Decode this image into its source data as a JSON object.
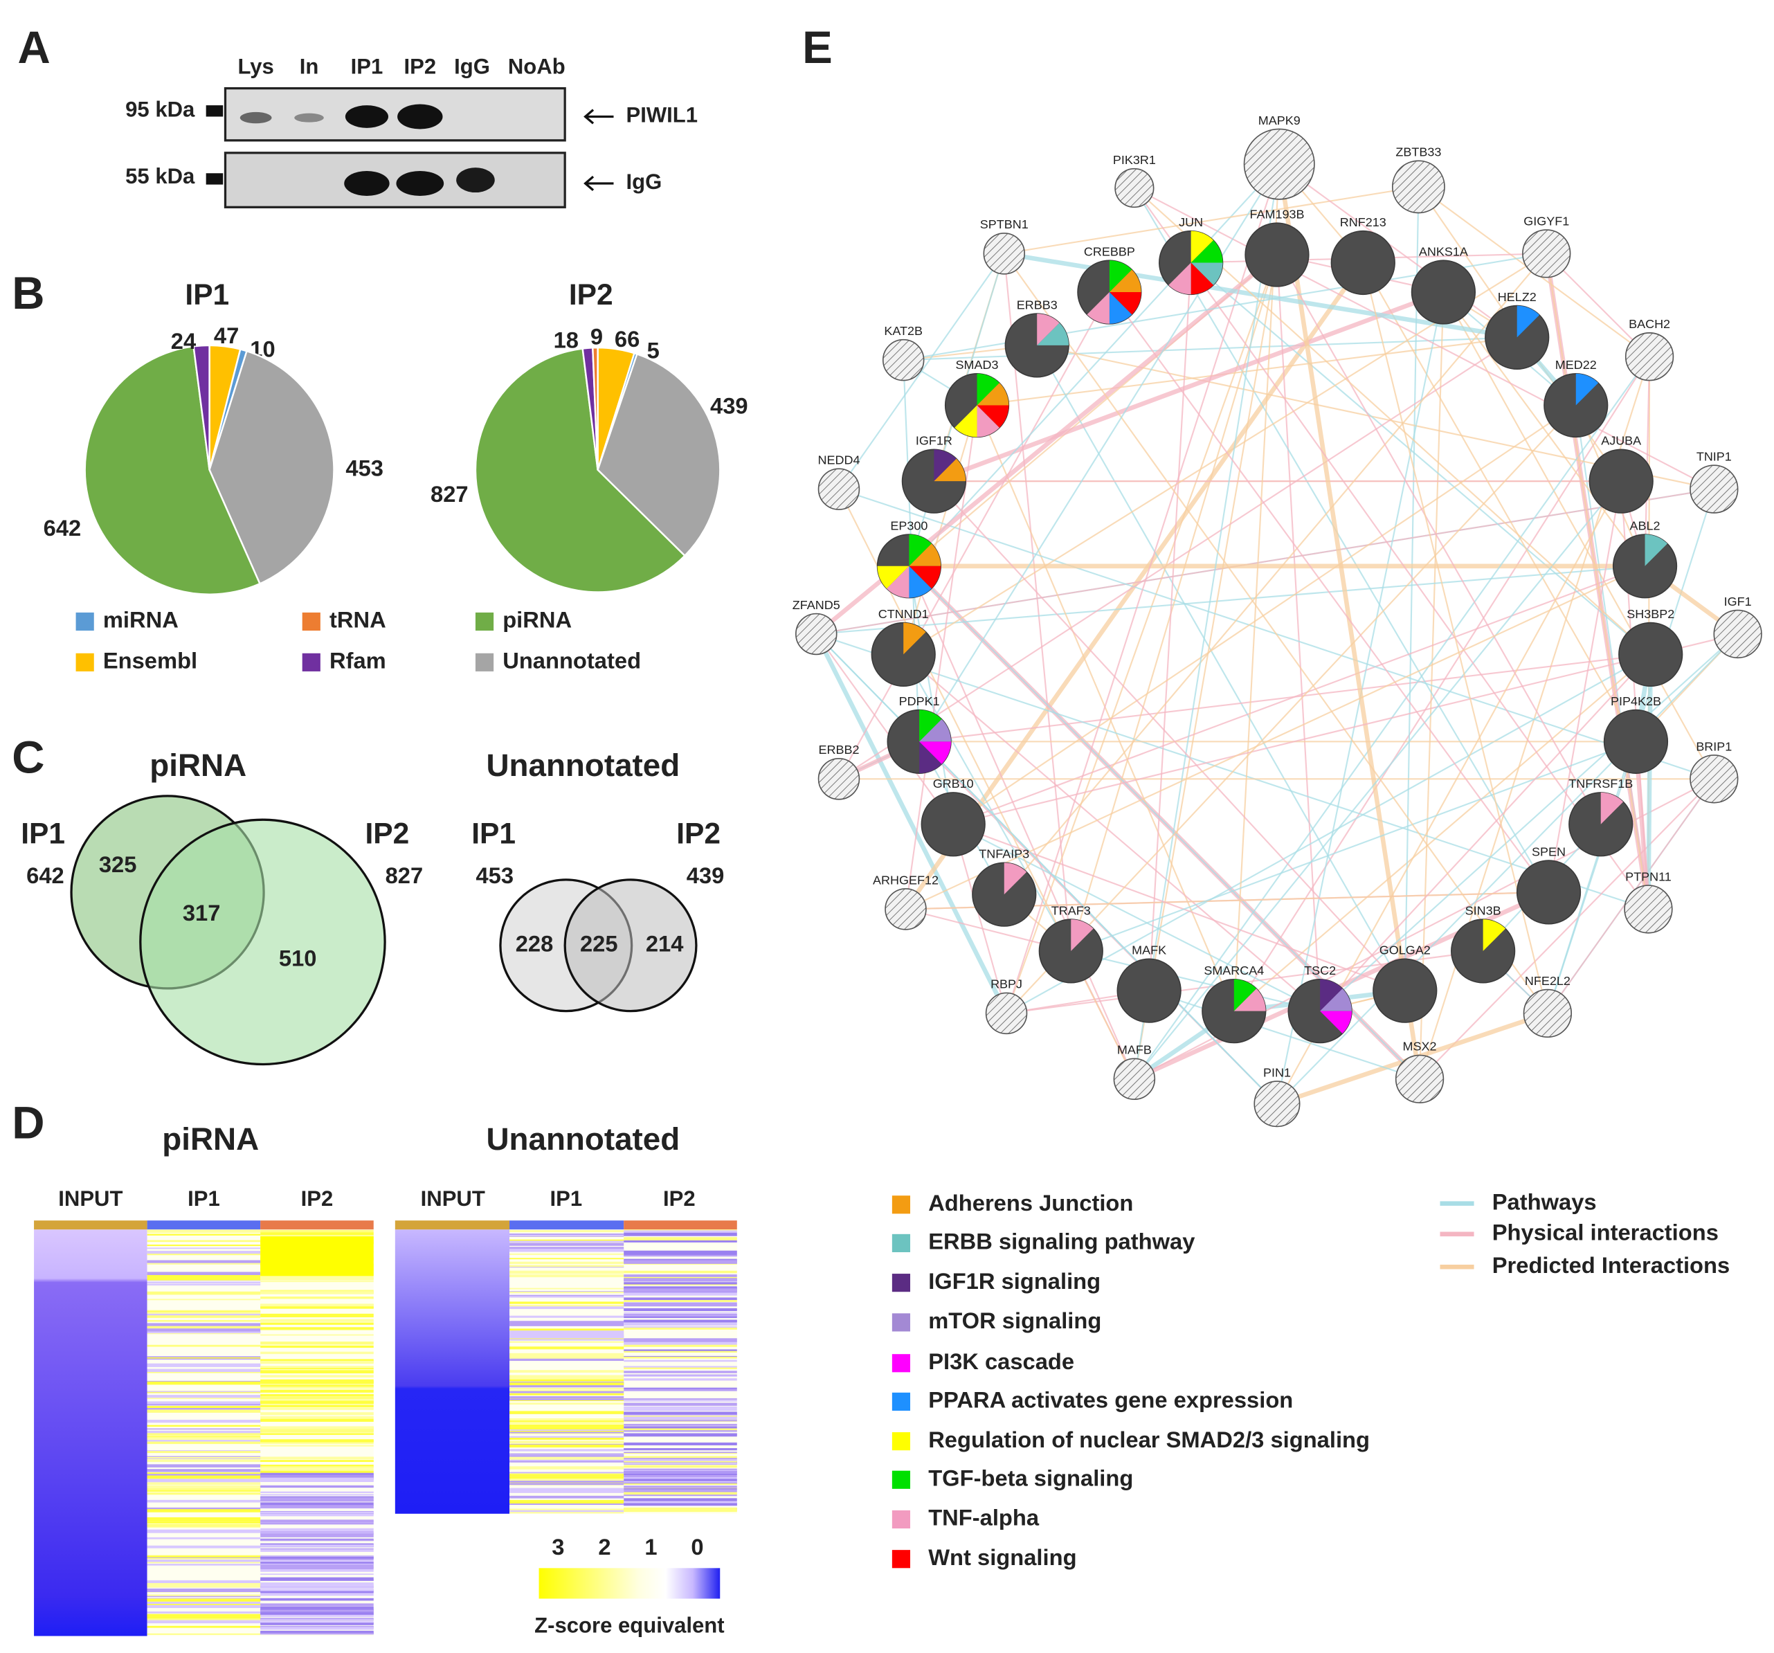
{
  "panel_labels": [
    "A",
    "B",
    "C",
    "D",
    "E"
  ],
  "blot": {
    "lanes": [
      "Lys",
      "In",
      "IP1",
      "IP2",
      "IgG",
      "NoAb"
    ],
    "markers": [
      "95 kDa",
      "55 kDa"
    ],
    "bands": [
      "PIWIL1",
      "IgG"
    ]
  },
  "pie_legend": [
    {
      "name": "miRNA",
      "color": "#5b9bd5"
    },
    {
      "name": "tRNA",
      "color": "#ed7d31"
    },
    {
      "name": "piRNA",
      "color": "#70ad47"
    },
    {
      "name": "Ensembl",
      "color": "#ffc000"
    },
    {
      "name": "Rfam",
      "color": "#7030a0"
    },
    {
      "name": "Unannotated",
      "color": "#a5a5a5"
    }
  ],
  "chart_data": [
    {
      "type": "pie",
      "title": "IP1",
      "categories": [
        "Ensembl",
        "miRNA",
        "Unannotated",
        "piRNA",
        "Rfam"
      ],
      "values": [
        47,
        10,
        453,
        642,
        24
      ]
    },
    {
      "type": "pie",
      "title": "IP2",
      "categories": [
        "Ensembl",
        "miRNA",
        "Unannotated",
        "piRNA",
        "Rfam",
        "tRNA"
      ],
      "values": [
        66,
        5,
        439,
        827,
        18,
        9
      ]
    }
  ],
  "venn": [
    {
      "title": "piRNA",
      "sets": [
        "IP1",
        "IP2"
      ],
      "totals": [
        642,
        827
      ],
      "regions": [
        325,
        317,
        510
      ]
    },
    {
      "title": "Unannotated",
      "sets": [
        "IP1",
        "IP2"
      ],
      "totals": [
        453,
        439
      ],
      "regions": [
        228,
        225,
        214
      ]
    }
  ],
  "heatmap": [
    {
      "title": "piRNA",
      "columns": [
        "INPUT",
        "IP1",
        "IP2"
      ]
    },
    {
      "title": "Unannotated",
      "columns": [
        "INPUT",
        "IP1",
        "IP2"
      ]
    }
  ],
  "colorbar": {
    "ticks": [
      3,
      2,
      1,
      0
    ],
    "label": "Z-score equivalent"
  },
  "network": {
    "nodes": [
      {
        "label": "JUN",
        "annotations": [
          "Regulation of nuclear SMAD2/3 signaling",
          "TGF-beta signaling",
          "ERBB signaling pathway",
          "Wnt signaling",
          "TNF-alpha"
        ]
      },
      {
        "label": "FAM193B",
        "annotations": []
      },
      {
        "label": "RNF213",
        "annotations": []
      },
      {
        "label": "ANKS1A",
        "annotations": []
      },
      {
        "label": "HELZ2",
        "annotations": [
          "PPARA activates gene expression"
        ]
      },
      {
        "label": "MED22",
        "annotations": [
          "PPARA activates gene expression"
        ]
      },
      {
        "label": "AJUBA",
        "annotations": []
      },
      {
        "label": "ABL2",
        "annotations": [
          "ERBB signaling pathway"
        ]
      },
      {
        "label": "SH3BP2",
        "annotations": []
      },
      {
        "label": "PIP4K2B",
        "annotations": []
      },
      {
        "label": "TNFRSF1B",
        "annotations": [
          "TNF-alpha"
        ]
      },
      {
        "label": "SPEN",
        "annotations": []
      },
      {
        "label": "SIN3B",
        "annotations": [
          "Regulation of nuclear SMAD2/3 signaling"
        ]
      },
      {
        "label": "GOLGA2",
        "annotations": []
      },
      {
        "label": "TSC2",
        "annotations": [
          "IGF1R signaling",
          "mTOR signaling",
          "PI3K cascade"
        ]
      },
      {
        "label": "SMARCA4",
        "annotations": [
          "TGF-beta signaling",
          "TNF-alpha"
        ]
      },
      {
        "label": "MAFK",
        "annotations": []
      },
      {
        "label": "TRAF3",
        "annotations": [
          "TNF-alpha"
        ]
      },
      {
        "label": "TNFAIP3",
        "annotations": [
          "TNF-alpha"
        ]
      },
      {
        "label": "GRB10",
        "annotations": []
      },
      {
        "label": "PDPK1",
        "annotations": [
          "TGF-beta signaling",
          "mTOR signaling",
          "PI3K cascade",
          "IGF1R signaling"
        ]
      },
      {
        "label": "CTNND1",
        "annotations": [
          "Adherens Junction"
        ]
      },
      {
        "label": "EP300",
        "annotations": [
          "TGF-beta signaling",
          "Adherens Junction",
          "Wnt signaling",
          "PPARA activates gene expression",
          "TNF-alpha",
          "Regulation of nuclear SMAD2/3 signaling"
        ]
      },
      {
        "label": "IGF1R",
        "annotations": [
          "IGF1R signaling",
          "Adherens Junction"
        ]
      },
      {
        "label": "SMAD3",
        "annotations": [
          "TGF-beta signaling",
          "Adherens Junction",
          "Wnt signaling",
          "TNF-alpha",
          "Regulation of nuclear SMAD2/3 signaling"
        ]
      },
      {
        "label": "ERBB3",
        "annotations": [
          "TNF-alpha",
          "ERBB signaling pathway"
        ]
      },
      {
        "label": "CREBBP",
        "annotations": [
          "TGF-beta signaling",
          "Adherens Junction",
          "Wnt signaling",
          "PPARA activates gene expression",
          "TNF-alpha"
        ]
      },
      {
        "label": "MAPK9",
        "annotations": []
      },
      {
        "label": "ZBTB33",
        "annotations": []
      },
      {
        "label": "GIGYF1",
        "annotations": []
      },
      {
        "label": "BACH2",
        "annotations": []
      },
      {
        "label": "TNIP1",
        "annotations": []
      },
      {
        "label": "IGF1",
        "annotations": []
      },
      {
        "label": "BRIP1",
        "annotations": []
      },
      {
        "label": "PTPN11",
        "annotations": []
      },
      {
        "label": "NFE2L2",
        "annotations": []
      },
      {
        "label": "MSX2",
        "annotations": []
      },
      {
        "label": "PIN1",
        "annotations": []
      },
      {
        "label": "MAFB",
        "annotations": []
      },
      {
        "label": "RBPJ",
        "annotations": []
      },
      {
        "label": "ARHGEF12",
        "annotations": []
      },
      {
        "label": "ERBB2",
        "annotations": []
      },
      {
        "label": "ZFAND5",
        "annotations": []
      },
      {
        "label": "NEDD4",
        "annotations": []
      },
      {
        "label": "KAT2B",
        "annotations": []
      },
      {
        "label": "SPTBN1",
        "annotations": []
      },
      {
        "label": "PIK3R1",
        "annotations": []
      }
    ],
    "legend": [
      {
        "name": "Adherens Junction",
        "color": "#f39c12"
      },
      {
        "name": "ERBB signaling pathway",
        "color": "#6cc3c0"
      },
      {
        "name": "IGF1R signaling",
        "color": "#5b2c83"
      },
      {
        "name": "mTOR signaling",
        "color": "#a389d4"
      },
      {
        "name": "PI3K cascade",
        "color": "#ff00ff"
      },
      {
        "name": "PPARA activates gene expression",
        "color": "#1e90ff"
      },
      {
        "name": "Regulation of nuclear SMAD2/3 signaling",
        "color": "#ffff00"
      },
      {
        "name": "TGF-beta signaling",
        "color": "#00e000"
      },
      {
        "name": "TNF-alpha",
        "color": "#f29bc0"
      },
      {
        "name": "Wnt signaling",
        "color": "#ff0000"
      }
    ],
    "edge_legend": [
      {
        "name": "Pathways",
        "color": "#a8dde6"
      },
      {
        "name": "Physical interactions",
        "color": "#f4b6c2"
      },
      {
        "name": "Predicted Interactions",
        "color": "#f7cfa0"
      }
    ]
  }
}
